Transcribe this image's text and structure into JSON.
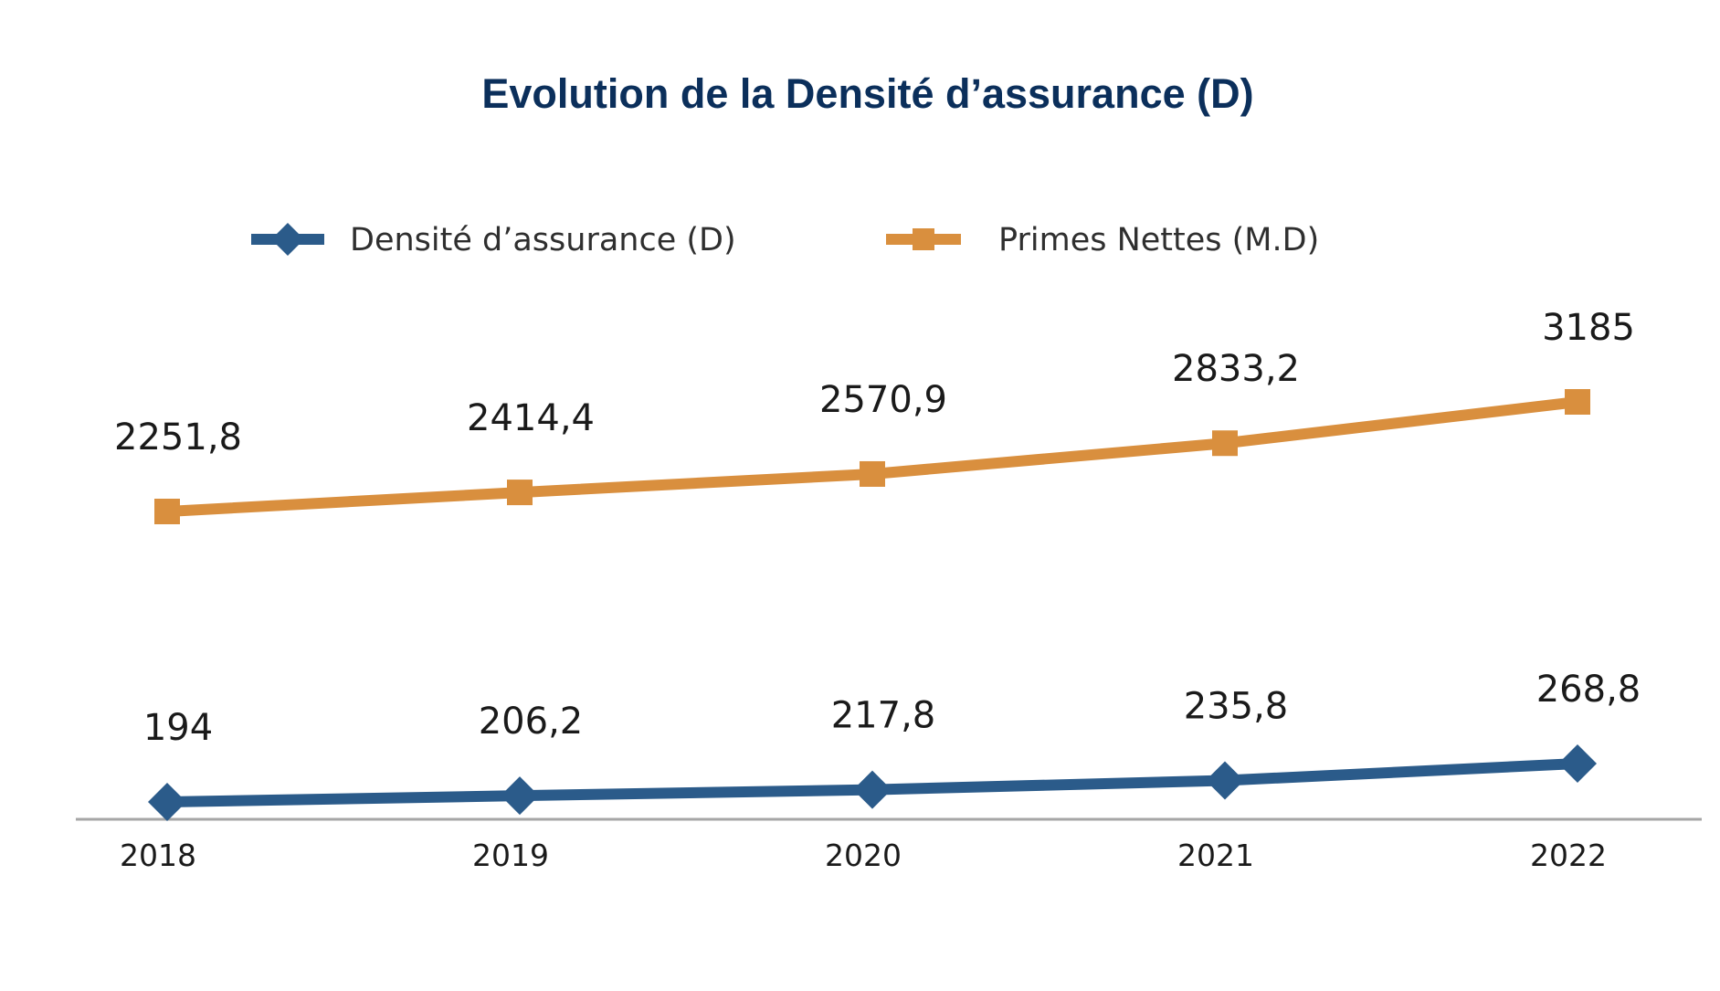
{
  "chart_data": {
    "type": "line",
    "title": "Evolution de la Densité d’assurance (D)",
    "xlabel": "",
    "ylabel": "",
    "categories": [
      "2018",
      "2019",
      "2020",
      "2021",
      "2022"
    ],
    "legend_position": "top",
    "grid": false,
    "series": [
      {
        "name": "Densité d’assurance (D)",
        "values": [
          194,
          206.2,
          217.8,
          235.8,
          268.8
        ],
        "labels": [
          "194",
          "206,2",
          "217,8",
          "235,8",
          "268,8"
        ],
        "color": "#2b5b8a",
        "marker": "diamond"
      },
      {
        "name": "Primes Nettes (M.D)",
        "values": [
          2251.8,
          2414.4,
          2570.9,
          2833.2,
          3185
        ],
        "labels": [
          "2251,8",
          "2414,4",
          "2570,9",
          "2833,2",
          "3185"
        ],
        "color": "#d98f3e",
        "marker": "square"
      }
    ]
  }
}
